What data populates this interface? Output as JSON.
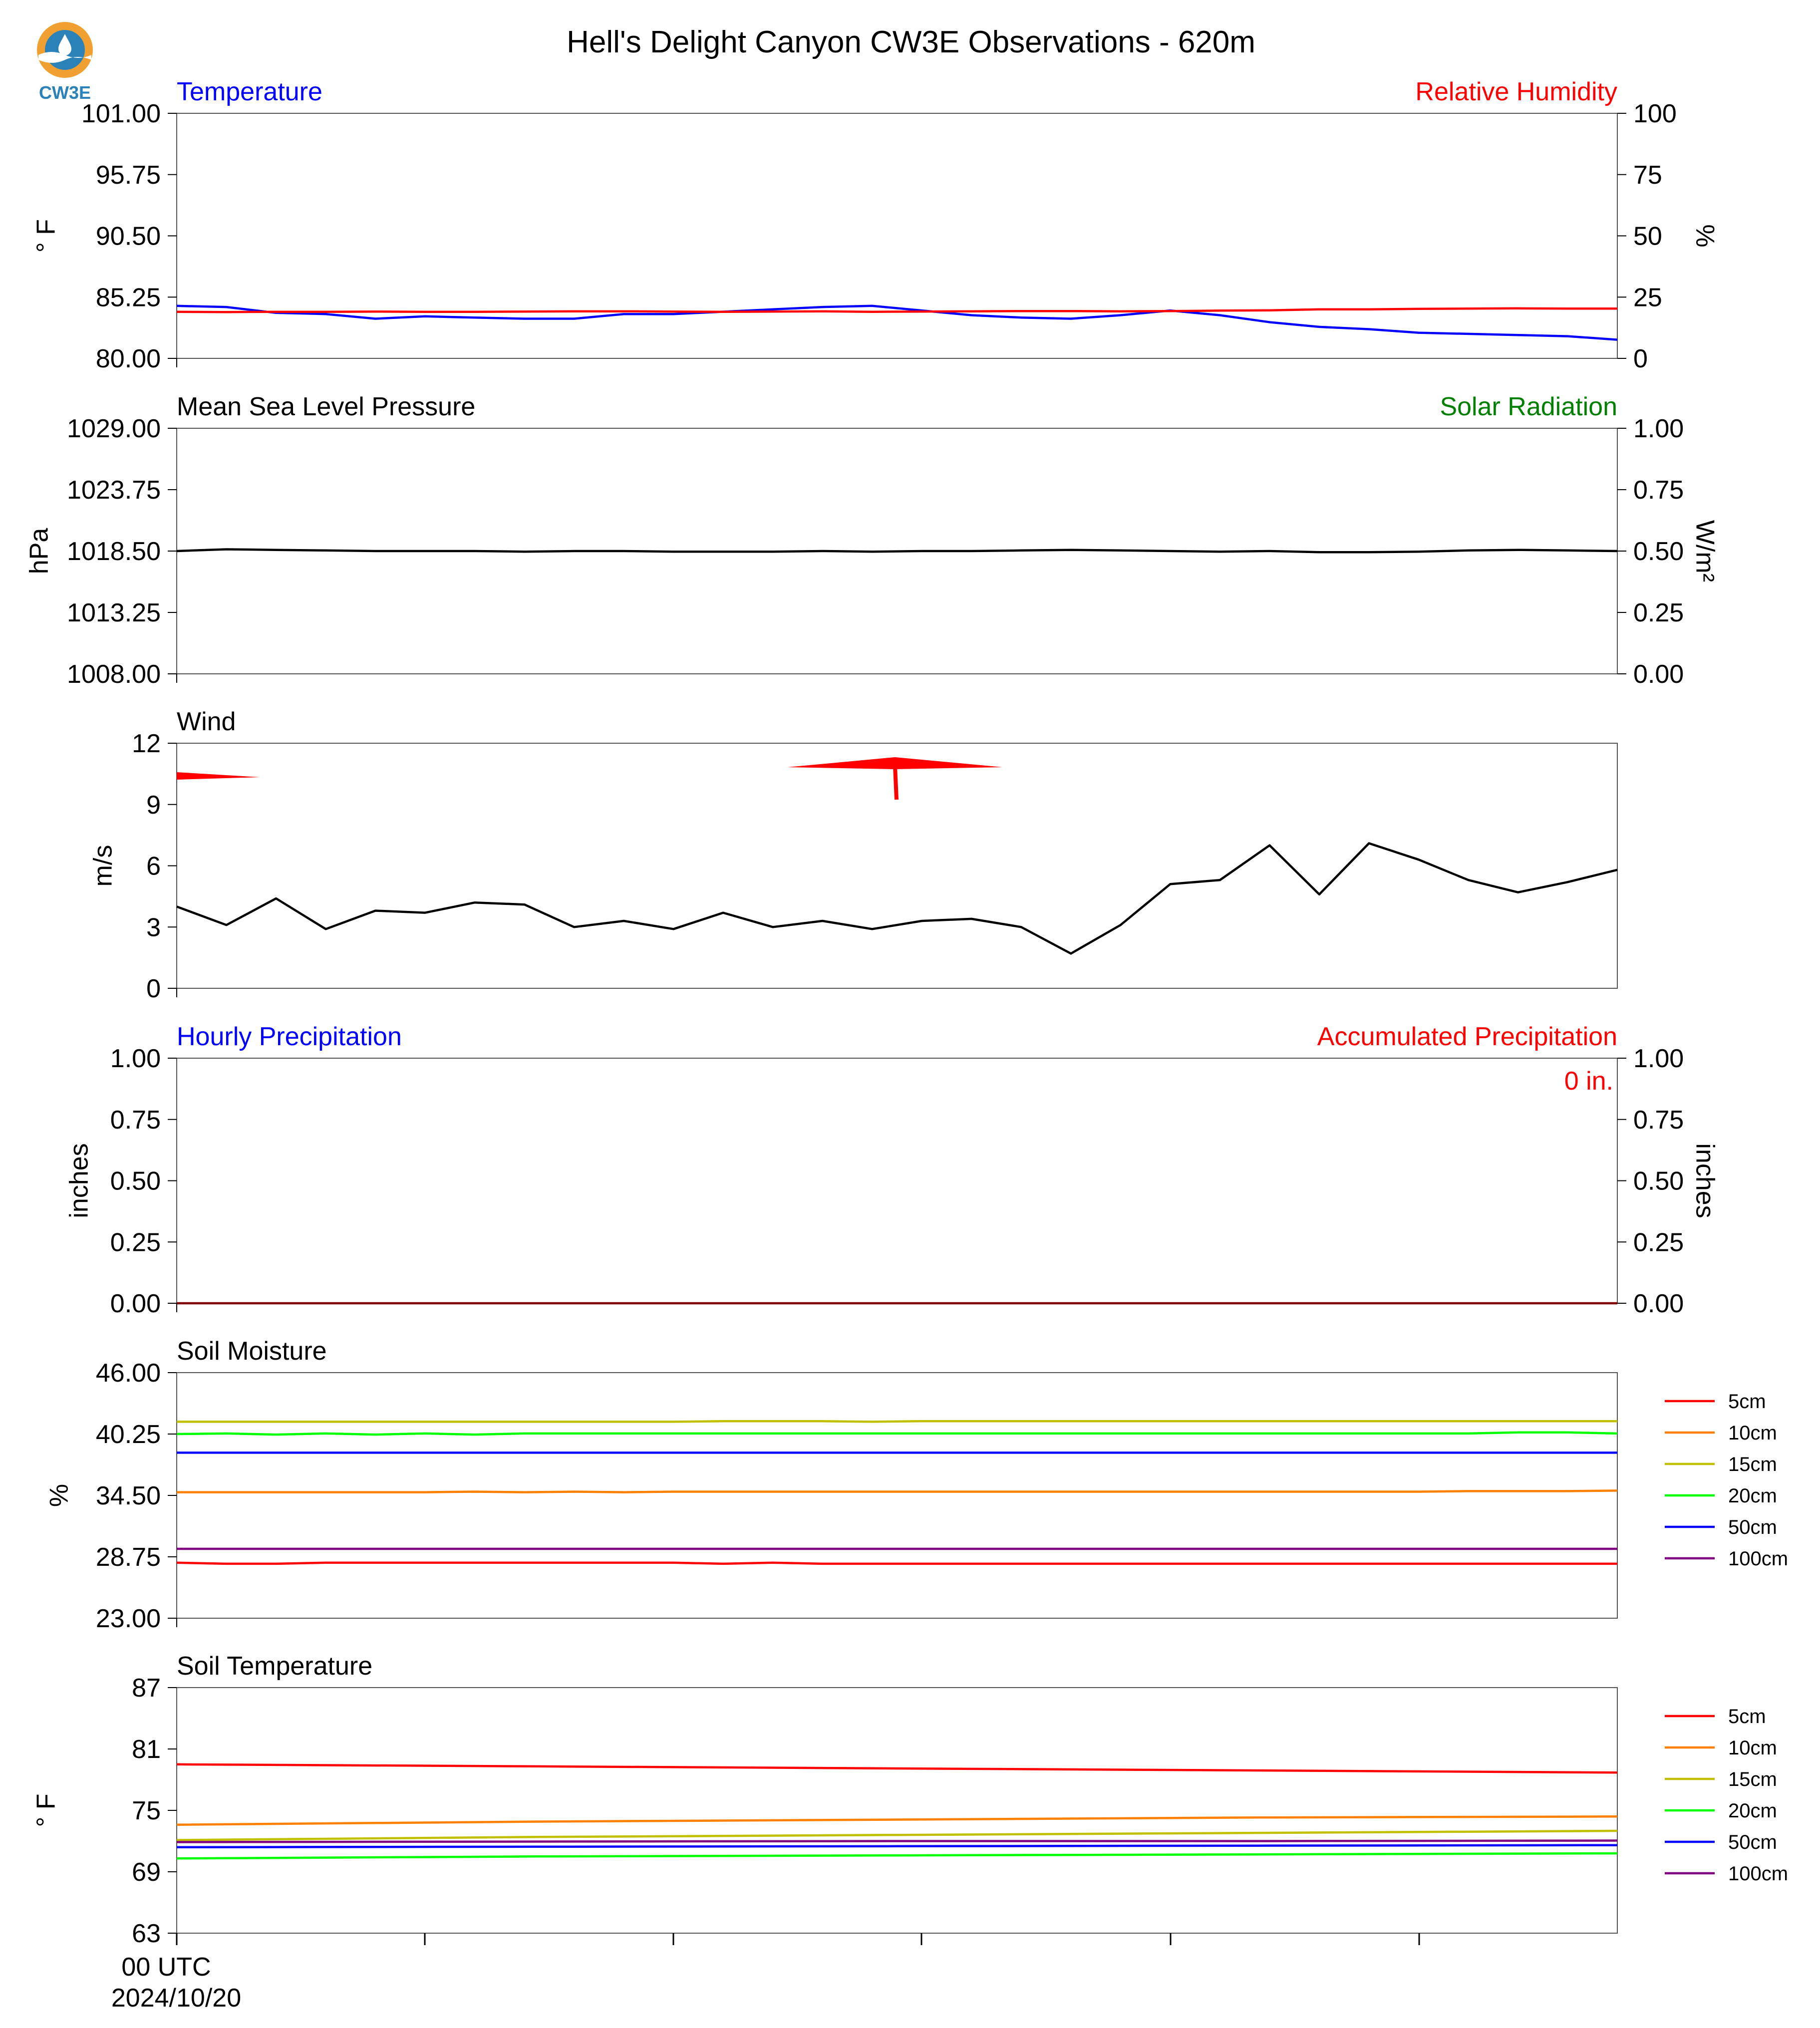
{
  "figure": {
    "title": "Hell's Delight Canyon CW3E Observations - 620m",
    "logo_text": "CW3E",
    "x_axis": {
      "first_tick_label": "00 UTC",
      "first_tick_date": "2024/10/20",
      "minor_tick_count": 6
    }
  },
  "chart_data": [
    {
      "id": "temp_rh",
      "type": "line",
      "left_title": "Temperature",
      "right_title": "Relative Humidity",
      "left_title_color": "#0000ff",
      "right_title_color": "#ff0000",
      "ylabel": "° F",
      "ylabel_right": "%",
      "ylim": [
        80.0,
        101.0
      ],
      "yticks": [
        "101.00",
        "95.75",
        "90.50",
        "85.25",
        "80.00"
      ],
      "ylim_right": [
        0,
        100
      ],
      "yticks_right": [
        "100",
        "75",
        "50",
        "25",
        "0"
      ],
      "series": [
        {
          "axis": "left",
          "color": "#0000ff",
          "values": [
            84.5,
            84.4,
            83.9,
            83.8,
            83.4,
            83.6,
            83.5,
            83.4,
            83.4,
            83.8,
            83.8,
            84.0,
            84.2,
            84.4,
            84.5,
            84.1,
            83.7,
            83.5,
            83.4,
            83.7,
            84.1,
            83.7,
            83.1,
            82.7,
            82.5,
            82.2,
            82.1,
            82.0,
            81.9,
            81.6
          ]
        },
        {
          "axis": "right",
          "color": "#ff0000",
          "values": [
            19.0,
            18.9,
            19.0,
            19.0,
            19.1,
            19.0,
            19.0,
            19.1,
            19.2,
            19.2,
            19.1,
            19.0,
            19.1,
            19.2,
            19.0,
            19.1,
            19.2,
            19.3,
            19.3,
            19.2,
            19.3,
            19.5,
            19.6,
            20.0,
            20.0,
            20.2,
            20.3,
            20.4,
            20.3,
            20.3
          ]
        }
      ]
    },
    {
      "id": "pressure_solar",
      "type": "line",
      "left_title": "Mean Sea Level Pressure",
      "right_title": "Solar Radiation",
      "left_title_color": "#000000",
      "right_title_color": "#008000",
      "ylabel": "hPa",
      "ylabel_right": "W/m²",
      "ylim": [
        1008.0,
        1029.0
      ],
      "yticks": [
        "1029.00",
        "1023.75",
        "1018.50",
        "1013.25",
        "1008.00"
      ],
      "ylim_right": [
        0.0,
        1.0
      ],
      "yticks_right": [
        "1.00",
        "0.75",
        "0.50",
        "0.25",
        "0.00"
      ],
      "series": [
        {
          "axis": "left",
          "color": "#000000",
          "values": [
            1018.5,
            1018.65,
            1018.6,
            1018.55,
            1018.5,
            1018.5,
            1018.5,
            1018.45,
            1018.5,
            1018.5,
            1018.45,
            1018.45,
            1018.45,
            1018.5,
            1018.45,
            1018.5,
            1018.5,
            1018.55,
            1018.6,
            1018.55,
            1018.5,
            1018.45,
            1018.5,
            1018.4,
            1018.4,
            1018.45,
            1018.55,
            1018.6,
            1018.55,
            1018.5
          ]
        }
      ]
    },
    {
      "id": "wind",
      "type": "line",
      "left_title": "Wind",
      "left_title_color": "#000000",
      "ylabel": "m/s",
      "ylim": [
        0,
        12
      ],
      "yticks": [
        "12",
        "9",
        "6",
        "3",
        "0"
      ],
      "barb_color": "#ff0000",
      "series": [
        {
          "axis": "left",
          "color": "#000000",
          "values": [
            4.0,
            3.1,
            4.4,
            2.9,
            3.8,
            3.7,
            4.2,
            4.1,
            3.0,
            3.3,
            2.9,
            3.7,
            3.0,
            3.3,
            2.9,
            3.3,
            3.4,
            3.0,
            1.7,
            3.1,
            5.1,
            5.3,
            7.0,
            4.6,
            7.1,
            6.3,
            5.3,
            4.7,
            5.2,
            5.8
          ]
        }
      ]
    },
    {
      "id": "precip",
      "type": "line",
      "left_title": "Hourly Precipitation",
      "right_title": "Accumulated Precipitation",
      "left_title_color": "#0000ff",
      "right_title_color": "#ff0000",
      "ylabel": "inches",
      "ylabel_right": "inches",
      "ylim": [
        0.0,
        1.0
      ],
      "yticks": [
        "1.00",
        "0.75",
        "0.50",
        "0.25",
        "0.00"
      ],
      "ylim_right": [
        0.0,
        1.0
      ],
      "yticks_right": [
        "1.00",
        "0.75",
        "0.50",
        "0.25",
        "0.00"
      ],
      "annotation": "0 in.",
      "annotation_color": "#ff0000",
      "series": [
        {
          "axis": "left",
          "color": "#800000",
          "values": [
            0,
            0,
            0,
            0,
            0,
            0,
            0,
            0,
            0,
            0,
            0,
            0,
            0,
            0,
            0,
            0,
            0,
            0,
            0,
            0,
            0,
            0,
            0,
            0,
            0,
            0,
            0,
            0,
            0,
            0
          ]
        }
      ]
    },
    {
      "id": "soil_moisture",
      "type": "line",
      "left_title": "Soil Moisture",
      "left_title_color": "#000000",
      "ylabel": "%",
      "ylim": [
        23.0,
        46.0
      ],
      "yticks": [
        "46.00",
        "40.25",
        "34.50",
        "28.75",
        "23.00"
      ],
      "series": [
        {
          "name": "5cm",
          "color": "#ff0000",
          "values": [
            28.2,
            28.1,
            28.1,
            28.2,
            28.2,
            28.2,
            28.2,
            28.2,
            28.2,
            28.2,
            28.2,
            28.1,
            28.2,
            28.1,
            28.1,
            28.1,
            28.1,
            28.1,
            28.1,
            28.1,
            28.1,
            28.1,
            28.1,
            28.1,
            28.1,
            28.1,
            28.1,
            28.1,
            28.1,
            28.1
          ]
        },
        {
          "name": "10cm",
          "color": "#ff8000",
          "values": [
            34.8,
            34.8,
            34.8,
            34.8,
            34.8,
            34.8,
            34.85,
            34.8,
            34.85,
            34.8,
            34.85,
            34.85,
            34.85,
            34.85,
            34.85,
            34.85,
            34.85,
            34.85,
            34.85,
            34.85,
            34.85,
            34.85,
            34.85,
            34.85,
            34.85,
            34.85,
            34.9,
            34.9,
            34.9,
            34.95
          ]
        },
        {
          "name": "15cm",
          "color": "#c0c000",
          "values": [
            41.4,
            41.4,
            41.4,
            41.4,
            41.4,
            41.4,
            41.4,
            41.4,
            41.4,
            41.4,
            41.4,
            41.45,
            41.45,
            41.45,
            41.4,
            41.45,
            41.45,
            41.45,
            41.45,
            41.45,
            41.45,
            41.45,
            41.45,
            41.45,
            41.45,
            41.45,
            41.45,
            41.45,
            41.45,
            41.45
          ]
        },
        {
          "name": "20cm",
          "color": "#00ff00",
          "values": [
            40.25,
            40.3,
            40.2,
            40.3,
            40.2,
            40.3,
            40.2,
            40.3,
            40.3,
            40.3,
            40.3,
            40.3,
            40.3,
            40.3,
            40.3,
            40.3,
            40.3,
            40.3,
            40.3,
            40.3,
            40.3,
            40.3,
            40.3,
            40.3,
            40.3,
            40.3,
            40.3,
            40.4,
            40.4,
            40.3
          ]
        },
        {
          "name": "50cm",
          "color": "#0000ff",
          "values": [
            38.5,
            38.5,
            38.5,
            38.5,
            38.5,
            38.5,
            38.5,
            38.5,
            38.5,
            38.5,
            38.5,
            38.5,
            38.5,
            38.5,
            38.5,
            38.5,
            38.5,
            38.5,
            38.5,
            38.5,
            38.5,
            38.5,
            38.5,
            38.5,
            38.5,
            38.5,
            38.5,
            38.5,
            38.5,
            38.5
          ]
        },
        {
          "name": "100cm",
          "color": "#800080",
          "values": [
            29.5,
            29.5,
            29.5,
            29.5,
            29.5,
            29.5,
            29.5,
            29.5,
            29.5,
            29.5,
            29.5,
            29.5,
            29.5,
            29.5,
            29.5,
            29.5,
            29.5,
            29.5,
            29.5,
            29.5,
            29.5,
            29.5,
            29.5,
            29.5,
            29.5,
            29.5,
            29.5,
            29.5,
            29.5,
            29.5
          ]
        }
      ]
    },
    {
      "id": "soil_temperature",
      "type": "line",
      "left_title": "Soil Temperature",
      "left_title_color": "#000000",
      "ylabel": "° F",
      "ylim": [
        63,
        87
      ],
      "yticks": [
        "87",
        "81",
        "75",
        "69",
        "63"
      ],
      "series": [
        {
          "name": "5cm",
          "color": "#ff0000",
          "values": [
            79.5,
            79.3,
            79.1,
            78.9,
            78.7
          ]
        },
        {
          "name": "10cm",
          "color": "#ff8000",
          "values": [
            73.6,
            73.9,
            74.1,
            74.3,
            74.4
          ]
        },
        {
          "name": "15cm",
          "color": "#c0c000",
          "values": [
            72.1,
            72.4,
            72.6,
            72.8,
            73.0
          ]
        },
        {
          "name": "20cm",
          "color": "#00ff00",
          "values": [
            70.3,
            70.5,
            70.6,
            70.7,
            70.8
          ]
        },
        {
          "name": "50cm",
          "color": "#0000ff",
          "values": [
            71.4,
            71.45,
            71.5,
            71.55,
            71.6
          ]
        },
        {
          "name": "100cm",
          "color": "#800080",
          "values": [
            71.9,
            71.95,
            72.0,
            72.0,
            72.05
          ]
        }
      ]
    }
  ]
}
